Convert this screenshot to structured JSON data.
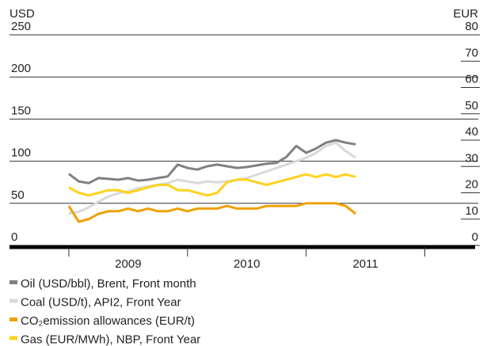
{
  "chart_data": {
    "type": "line",
    "y_title": "USD",
    "y2_title": "EUR",
    "x": [
      2009,
      2009.083,
      2009.167,
      2009.25,
      2009.333,
      2009.417,
      2009.5,
      2009.583,
      2009.667,
      2009.75,
      2009.833,
      2009.917,
      2010,
      2010.083,
      2010.167,
      2010.25,
      2010.333,
      2010.417,
      2010.5,
      2010.583,
      2010.667,
      2010.75,
      2010.833,
      2010.917,
      2011,
      2011.083,
      2011.167,
      2011.25,
      2011.333,
      2011.417
    ],
    "xlim": [
      2008.5,
      2012.29
    ],
    "xticks": [
      2009,
      2010,
      2011,
      2012
    ],
    "year_labels": [
      {
        "value": 2009.5,
        "label": "2009"
      },
      {
        "value": 2010.5,
        "label": "2010"
      },
      {
        "value": 2011.5,
        "label": "2011"
      }
    ],
    "ylim": [
      0,
      250
    ],
    "yticks": [
      0,
      50,
      100,
      150,
      200,
      250
    ],
    "y2lim": [
      0,
      80
    ],
    "y2ticks": [
      0,
      10,
      20,
      30,
      40,
      50,
      60,
      70,
      80
    ],
    "series": [
      {
        "name": "Oil (USD/bbl), Brent, Front month",
        "color": "#808080",
        "values": [
          85,
          76,
          74,
          80,
          79,
          78,
          80,
          77,
          78,
          80,
          82,
          96,
          92,
          90,
          94,
          96,
          94,
          92,
          93,
          95,
          97,
          98,
          105,
          118,
          110,
          115,
          122,
          125,
          122,
          120
        ]
      },
      {
        "name": "Coal (USD/t), API2, Front Year",
        "color": "#d9d9d9",
        "values": [
          38,
          40,
          45,
          52,
          58,
          62,
          64,
          68,
          70,
          72,
          74,
          78,
          76,
          74,
          76,
          75,
          76,
          78,
          80,
          84,
          88,
          92,
          96,
          100,
          104,
          110,
          118,
          122,
          112,
          104
        ]
      },
      {
        "name": "CO₂emission allowances (EUR/t)",
        "color": "#f0a000",
        "axis": "y2",
        "values": [
          15,
          9,
          10,
          12,
          13,
          13,
          14,
          13,
          14,
          13,
          13,
          14,
          13,
          14,
          14,
          14,
          15,
          14,
          14,
          14,
          15,
          15,
          15,
          15,
          16,
          16,
          16,
          16,
          15,
          12
        ]
      },
      {
        "name": "Gas (EUR/MWh), NBP, Front Year",
        "color": "#ffd21f",
        "axis": "y2",
        "values": [
          22,
          20,
          19,
          20,
          21,
          21,
          20,
          21,
          22,
          23,
          23,
          21,
          21,
          20,
          19,
          20,
          24,
          25,
          25,
          24,
          23,
          24,
          25,
          26,
          27,
          26,
          27,
          26,
          27,
          26
        ]
      }
    ]
  }
}
